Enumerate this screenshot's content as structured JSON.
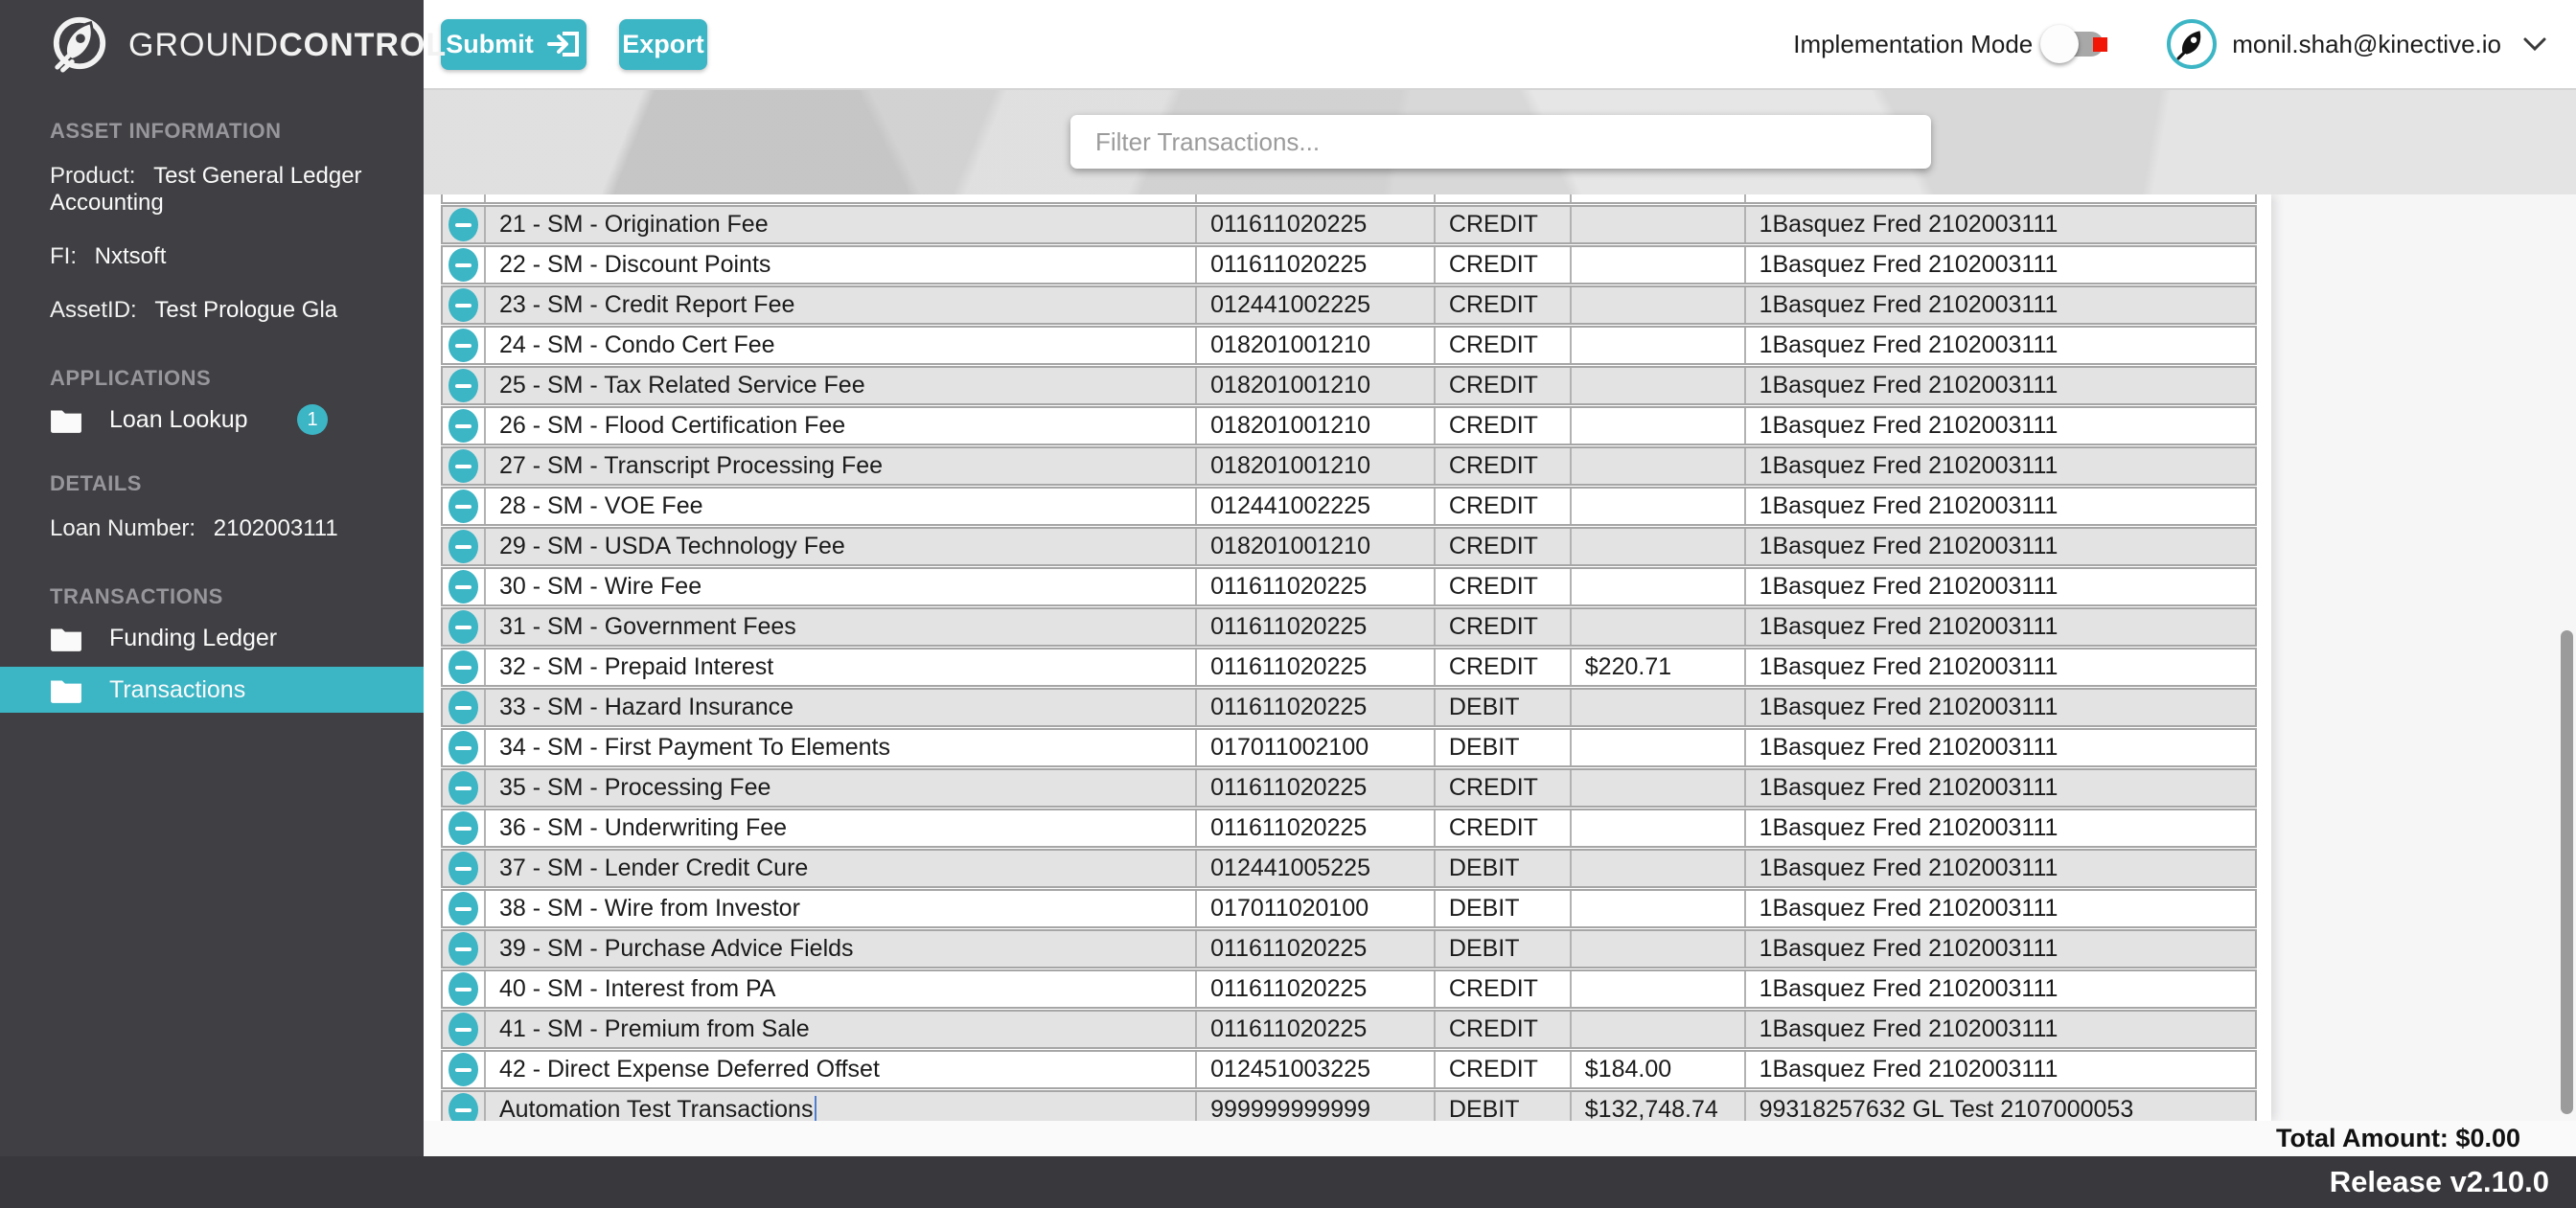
{
  "colors": {
    "accent": "#3cb5c5",
    "sidebar_bg": "#404044",
    "row_shaded": "#e3e3e3",
    "toggle_alert": "#f21607"
  },
  "logo": {
    "part1": "GROUND",
    "part2": "CONTROL"
  },
  "sidebar": {
    "asset_info": {
      "title": "ASSET INFORMATION",
      "fields": [
        {
          "label": "Product:",
          "value": "Test General Ledger Accounting"
        },
        {
          "label": "FI:",
          "value": "Nxtsoft"
        },
        {
          "label": "AssetID:",
          "value": "Test Prologue Gla"
        }
      ]
    },
    "applications": {
      "title": "APPLICATIONS",
      "items": [
        {
          "label": "Loan Lookup",
          "badge": "1"
        }
      ]
    },
    "details": {
      "title": "DETAILS",
      "fields": [
        {
          "label": "Loan Number:",
          "value": "2102003111"
        }
      ]
    },
    "transactions": {
      "title": "TRANSACTIONS",
      "items": [
        {
          "label": "Funding Ledger"
        },
        {
          "label": "Transactions"
        }
      ]
    }
  },
  "topbar": {
    "submit_label": "Submit",
    "export_label": "Export",
    "implementation_mode_label": "Implementation Mode",
    "user_email": "monil.shah@kinective.io"
  },
  "filter": {
    "placeholder": "Filter Transactions..."
  },
  "table": {
    "rows": [
      [
        "21 - SM - Origination Fee",
        "011611020225",
        "CREDIT",
        "",
        "1Basquez Fred 2102003111"
      ],
      [
        "22 - SM - Discount Points",
        "011611020225",
        "CREDIT",
        "",
        "1Basquez Fred 2102003111"
      ],
      [
        "23 - SM - Credit Report Fee",
        "012441002225",
        "CREDIT",
        "",
        "1Basquez Fred 2102003111"
      ],
      [
        "24 - SM - Condo Cert Fee",
        "018201001210",
        "CREDIT",
        "",
        "1Basquez Fred 2102003111"
      ],
      [
        "25 - SM - Tax Related Service Fee",
        "018201001210",
        "CREDIT",
        "",
        "1Basquez Fred 2102003111"
      ],
      [
        "26 - SM - Flood Certification Fee",
        "018201001210",
        "CREDIT",
        "",
        "1Basquez Fred 2102003111"
      ],
      [
        "27 - SM - Transcript Processing Fee",
        "018201001210",
        "CREDIT",
        "",
        "1Basquez Fred 2102003111"
      ],
      [
        "28 - SM - VOE Fee",
        "012441002225",
        "CREDIT",
        "",
        "1Basquez Fred 2102003111"
      ],
      [
        "29 - SM - USDA Technology Fee",
        "018201001210",
        "CREDIT",
        "",
        "1Basquez Fred 2102003111"
      ],
      [
        "30 - SM - Wire Fee",
        "011611020225",
        "CREDIT",
        "",
        "1Basquez Fred 2102003111"
      ],
      [
        "31 - SM - Government Fees",
        "011611020225",
        "CREDIT",
        "",
        "1Basquez Fred 2102003111"
      ],
      [
        "32 - SM - Prepaid Interest",
        "011611020225",
        "CREDIT",
        "$220.71",
        "1Basquez Fred 2102003111"
      ],
      [
        "33 - SM - Hazard Insurance",
        "011611020225",
        "DEBIT",
        "",
        "1Basquez Fred 2102003111"
      ],
      [
        "34 - SM - First Payment To Elements",
        "017011002100",
        "DEBIT",
        "",
        "1Basquez Fred 2102003111"
      ],
      [
        "35 - SM - Processing Fee",
        "011611020225",
        "CREDIT",
        "",
        "1Basquez Fred 2102003111"
      ],
      [
        "36 - SM - Underwriting Fee",
        "011611020225",
        "CREDIT",
        "",
        "1Basquez Fred 2102003111"
      ],
      [
        "37 - SM - Lender Credit Cure",
        "012441005225",
        "DEBIT",
        "",
        "1Basquez Fred 2102003111"
      ],
      [
        "38 - SM - Wire from Investor",
        "017011020100",
        "DEBIT",
        "",
        "1Basquez Fred 2102003111"
      ],
      [
        "39 - SM - Purchase Advice Fields",
        "011611020225",
        "DEBIT",
        "",
        "1Basquez Fred 2102003111"
      ],
      [
        "40 - SM - Interest from PA",
        "011611020225",
        "CREDIT",
        "",
        "1Basquez Fred 2102003111"
      ],
      [
        "41 - SM - Premium from Sale",
        "011611020225",
        "CREDIT",
        "",
        "1Basquez Fred 2102003111"
      ],
      [
        "42 - Direct Expense Deferred Offset",
        "012451003225",
        "CREDIT",
        "$184.00",
        "1Basquez Fred 2102003111"
      ],
      [
        "Automation Test Transactions",
        "999999999999",
        "DEBIT",
        "$132,748.74",
        "99318257632 GL Test 2107000053"
      ]
    ],
    "editing_row_index": 22
  },
  "totals": {
    "total_amount_label": "Total Amount: $0.00"
  },
  "footer": {
    "release_label": "Release v2.10.0"
  }
}
